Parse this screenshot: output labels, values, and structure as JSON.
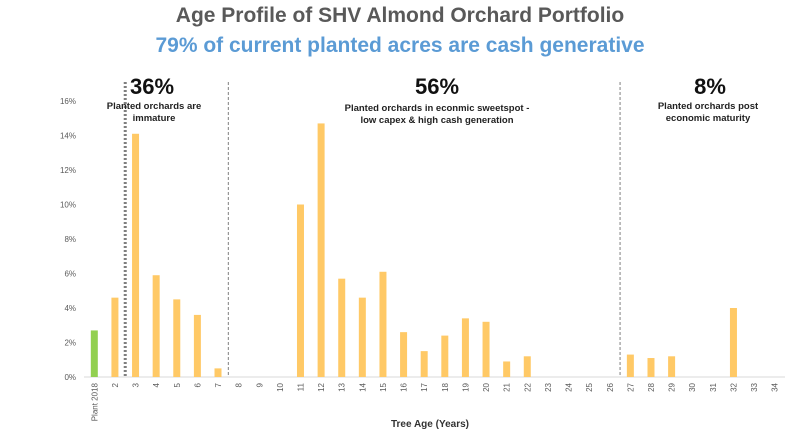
{
  "header": {
    "title": "Age Profile of SHV Almond Orchard Portfolio",
    "subtitle": "79% of current planted acres are cash generative"
  },
  "colors": {
    "title": "#595959",
    "subtitle": "#5b9bd5",
    "bar": "#ffc966",
    "bar_plant": "#92d050",
    "divider": "#7f7f7f",
    "grid": "#d9d9d9"
  },
  "sections": [
    {
      "pct": "36%",
      "lines": [
        "Planted orchards are",
        "immature"
      ]
    },
    {
      "pct": "56%",
      "lines": [
        "Planted orchards in econmic sweetspot -",
        "low capex & high cash generation"
      ]
    },
    {
      "pct": "8%",
      "lines": [
        "Planted orchards post",
        "economic maturity"
      ]
    }
  ],
  "chart_data": {
    "type": "bar",
    "xlabel": "Tree Age (Years)",
    "ylabel": "",
    "ylim": [
      0,
      16
    ],
    "y_ticks": [
      "0%",
      "2%",
      "4%",
      "6%",
      "8%",
      "10%",
      "12%",
      "14%",
      "16%"
    ],
    "grid": false,
    "categories": [
      "Plant 2018",
      "2",
      "3",
      "4",
      "5",
      "6",
      "7",
      "8",
      "9",
      "10",
      "11",
      "12",
      "13",
      "14",
      "15",
      "16",
      "17",
      "18",
      "19",
      "20",
      "21",
      "22",
      "23",
      "24",
      "25",
      "26",
      "27",
      "28",
      "29",
      "30",
      "31",
      "32",
      "33",
      "34"
    ],
    "values": [
      2.7,
      4.6,
      14.1,
      5.9,
      4.5,
      3.6,
      0.5,
      0,
      0,
      0,
      10.0,
      14.7,
      5.7,
      4.6,
      6.1,
      2.6,
      1.5,
      2.4,
      3.4,
      3.2,
      0.9,
      1.2,
      0,
      0,
      0,
      0,
      1.3,
      1.1,
      1.2,
      0,
      0,
      4.0,
      0,
      0
    ],
    "value_unit": "%"
  }
}
